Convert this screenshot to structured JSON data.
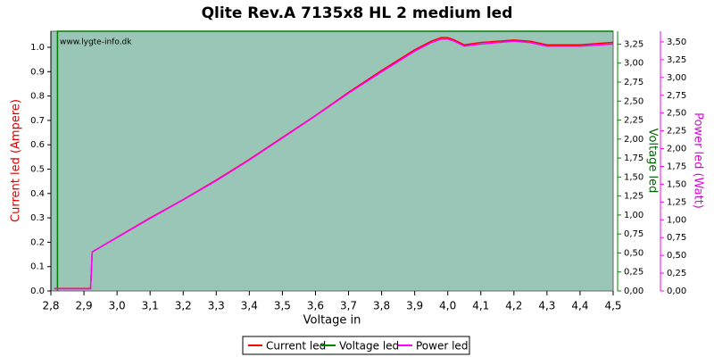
{
  "chart_data": {
    "type": "line",
    "title": "Qlite Rev.A 7135x8 HL 2 medium led",
    "watermark": "www.lygte-info.dk",
    "x_label": "Voltage in",
    "y_label": "Current led (Ampere)",
    "y2_label": "Voltage led",
    "y3_label": "Power led (Watt)",
    "background": "#99c6b7",
    "xlim": [
      2.8,
      4.5
    ],
    "xticks": [
      {
        "value": 2.8,
        "label": "2,8"
      },
      {
        "value": 2.9,
        "label": "2,9"
      },
      {
        "value": 3.0,
        "label": "3,0"
      },
      {
        "value": 3.1,
        "label": "3,1"
      },
      {
        "value": 3.2,
        "label": "3,2"
      },
      {
        "value": 3.3,
        "label": "3,3"
      },
      {
        "value": 3.4,
        "label": "3,4"
      },
      {
        "value": 3.5,
        "label": "3,5"
      },
      {
        "value": 3.6,
        "label": "3,6"
      },
      {
        "value": 3.7,
        "label": "3,7"
      },
      {
        "value": 3.8,
        "label": "3,8"
      },
      {
        "value": 3.9,
        "label": "3,9"
      },
      {
        "value": 4.0,
        "label": "4,0"
      },
      {
        "value": 4.1,
        "label": "4,1"
      },
      {
        "value": 4.2,
        "label": "4,2"
      },
      {
        "value": 4.3,
        "label": "4,3"
      },
      {
        "value": 4.4,
        "label": "4,4"
      },
      {
        "value": 4.5,
        "label": "4,5"
      }
    ],
    "ylim": [
      0,
      1.066
    ],
    "yticks": [
      {
        "value": 0,
        "label": "0.0"
      },
      0.1,
      0.2,
      0.3,
      0.4,
      0.5,
      0.6,
      0.7,
      0.8,
      0.9,
      {
        "value": 1,
        "label": "1.0"
      }
    ],
    "y2lim": [
      0,
      3.42
    ],
    "y2ticks": [
      {
        "value": 0,
        "label": "0,00"
      },
      {
        "value": 0.25,
        "label": "0,25"
      },
      {
        "value": 0.5,
        "label": "0,50"
      },
      {
        "value": 0.75,
        "label": "0,75"
      },
      {
        "value": 1,
        "label": "1,00"
      },
      {
        "value": 1.25,
        "label": "1,25"
      },
      {
        "value": 1.5,
        "label": "1,50"
      },
      {
        "value": 1.75,
        "label": "1,75"
      },
      {
        "value": 2,
        "label": "2,00"
      },
      {
        "value": 2.25,
        "label": "2,25"
      },
      {
        "value": 2.5,
        "label": "2,50"
      },
      {
        "value": 2.75,
        "label": "2,75"
      },
      {
        "value": 3,
        "label": "3,00"
      },
      {
        "value": 3.25,
        "label": "3,25"
      }
    ],
    "y3lim": [
      0,
      3.65
    ],
    "y3ticks": [
      {
        "value": 0,
        "label": "0,00"
      },
      {
        "value": 0.25,
        "label": "0,25"
      },
      {
        "value": 0.5,
        "label": "0,50"
      },
      {
        "value": 0.75,
        "label": "0,75"
      },
      {
        "value": 1,
        "label": "1,00"
      },
      {
        "value": 1.25,
        "label": "1,25"
      },
      {
        "value": 1.5,
        "label": "1,50"
      },
      {
        "value": 1.75,
        "label": "1,75"
      },
      {
        "value": 2,
        "label": "2,00"
      },
      {
        "value": 2.25,
        "label": "2,25"
      },
      {
        "value": 2.5,
        "label": "2,50"
      },
      {
        "value": 2.75,
        "label": "2,75"
      },
      {
        "value": 3,
        "label": "3,00"
      },
      {
        "value": 3.25,
        "label": "3,25"
      },
      {
        "value": 3.5,
        "label": "3,50"
      }
    ],
    "x": [
      2.81,
      2.92,
      2.925,
      3.0,
      3.1,
      3.2,
      3.3,
      3.4,
      3.5,
      3.6,
      3.7,
      3.8,
      3.9,
      3.95,
      3.98,
      4.0,
      4.02,
      4.05,
      4.1,
      4.2,
      4.25,
      4.3,
      4.4,
      4.5
    ],
    "series": [
      {
        "name": "Current led",
        "color": "#ff0000",
        "axis": "y",
        "values": [
          0.01,
          0.01,
          0.16,
          0.22,
          0.3,
          0.375,
          0.455,
          0.54,
          0.63,
          0.72,
          0.815,
          0.905,
          0.99,
          1.025,
          1.04,
          1.04,
          1.03,
          1.01,
          1.02,
          1.03,
          1.025,
          1.01,
          1.01,
          1.02
        ]
      },
      {
        "name": "Voltage led",
        "color": "#008000",
        "axis": "y2",
        "x": [
          2.82,
          2.82,
          4.5
        ],
        "values": [
          0,
          3.42,
          3.42
        ]
      },
      {
        "name": "Power led",
        "color": "#ff00ff",
        "axis": "y3",
        "values": [
          0.03,
          0.03,
          0.55,
          0.75,
          1.02,
          1.28,
          1.55,
          1.84,
          2.15,
          2.46,
          2.78,
          3.08,
          3.37,
          3.49,
          3.54,
          3.54,
          3.51,
          3.44,
          3.47,
          3.51,
          3.49,
          3.44,
          3.44,
          3.47
        ]
      }
    ]
  }
}
